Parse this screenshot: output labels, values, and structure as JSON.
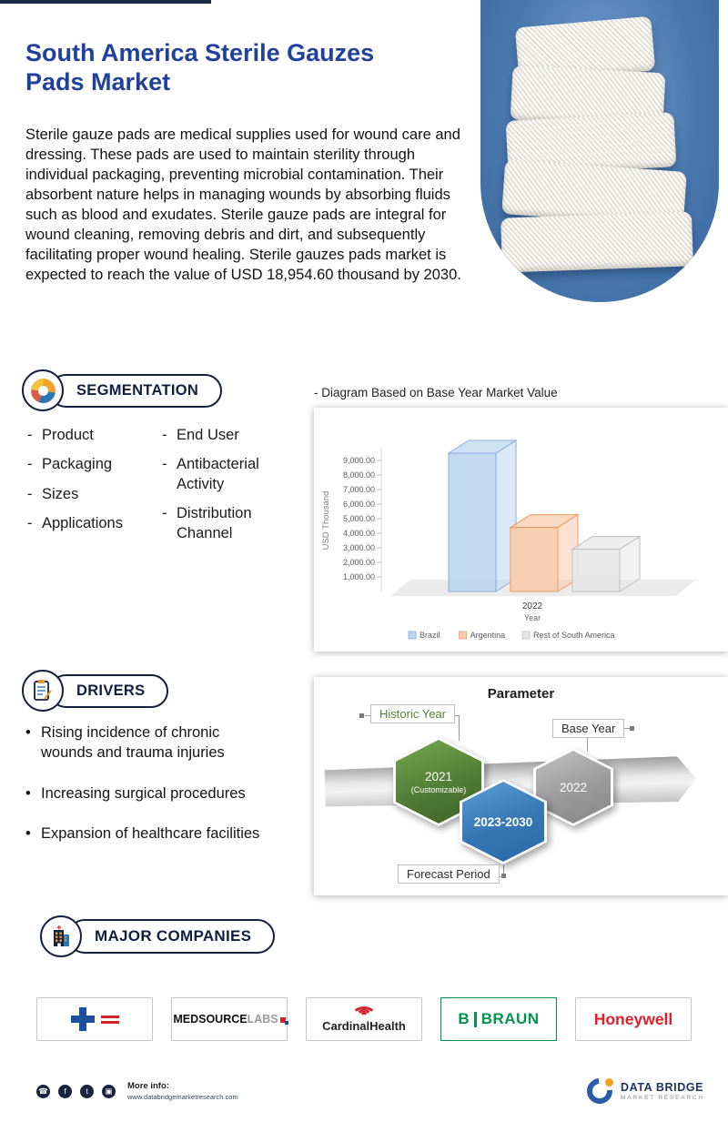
{
  "header": {
    "title": "South America Sterile Gauzes Pads Market",
    "description": "Sterile gauze pads are medical supplies used for wound care and dressing. These pads are used to maintain sterility through individual packaging, preventing microbial contamination. Their absorbent nature helps in managing wounds by absorbing fluids such as blood and exudates. Sterile gauze pads are integral for wound cleaning, removing debris and dirt, and subsequently facilitating proper wound healing. Sterile gauzes pads market is expected to reach the value of USD 18,954.60 thousand by 2030."
  },
  "segmentation": {
    "heading": "SEGMENTATION",
    "column1": [
      "Product",
      "Packaging",
      "Sizes",
      "Applications"
    ],
    "column2": [
      "End User",
      "Antibacterial Activity",
      "Distribution Channel"
    ]
  },
  "chart_caption": "-  Diagram Based on Base Year Market Value",
  "chart_data": {
    "type": "bar",
    "title": "Diagram Based on Base Year Market Value",
    "categories": [
      "2022"
    ],
    "xlabel": "Year",
    "ylabel": "USD Thousand",
    "ylim": [
      0,
      10000
    ],
    "ytick_labels": [
      "1,000.00",
      "2,000.00",
      "3,000.00",
      "4,000.00",
      "5,000.00",
      "6,000.00",
      "7,000.00",
      "8,000.00",
      "9,000.00"
    ],
    "series": [
      {
        "name": "Brazil",
        "values": [
          9500
        ],
        "color": "#BDD7EE",
        "edge": "#8FAADC"
      },
      {
        "name": "Argentina",
        "values": [
          4400
        ],
        "color": "#F8CBAD",
        "edge": "#ED9B5F"
      },
      {
        "name": "Rest of South America",
        "values": [
          2900
        ],
        "color": "#E7E6E6",
        "edge": "#BFBFBF"
      }
    ],
    "legend_position": "bottom",
    "grid": false
  },
  "drivers": {
    "heading": "DRIVERS",
    "items": [
      "Rising incidence of chronic wounds and trauma injuries",
      "Increasing surgical procedures",
      "Expansion of healthcare facilities"
    ]
  },
  "parameter": {
    "title": "Parameter",
    "historic": {
      "label": "Historic Year",
      "value": "2021",
      "note": "(Customizable)"
    },
    "base": {
      "label": "Base Year",
      "value": "2022"
    },
    "forecast": {
      "label": "Forecast Period",
      "value": "2023-2030"
    }
  },
  "companies": {
    "heading": "MAJOR COMPANIES",
    "logos": [
      {
        "name": "white-cross-medical"
      },
      {
        "name": "MedSource Labs",
        "part1": "MEDSOURCE",
        "part2": "LABS"
      },
      {
        "name": "Cardinal Health",
        "text": "CardinalHealth"
      },
      {
        "name": "B Braun",
        "part1": "B",
        "part2": "BRAUN"
      },
      {
        "name": "Honeywell",
        "text": "Honeywell"
      }
    ]
  },
  "footer": {
    "social_icons": [
      "whatsapp",
      "facebook",
      "twitter",
      "instagram"
    ],
    "social_glyphs": [
      "☎",
      "f",
      "t",
      "▣"
    ],
    "more_info_label": "More info:",
    "website": "www.databridgemarketresearch.com",
    "brand_name": "DATA BRIDGE",
    "brand_tagline": "MARKET RESEARCH"
  },
  "colors": {
    "accent_navy": "#1b2a49",
    "title_blue": "#1f419b",
    "hex_green": "#538135",
    "hex_gray": "#9a9a9a",
    "hex_blue": "#2e75b6",
    "braun_green": "#00954C",
    "honeywell_red": "#E21E26",
    "cardinal_red": "#D22630"
  }
}
